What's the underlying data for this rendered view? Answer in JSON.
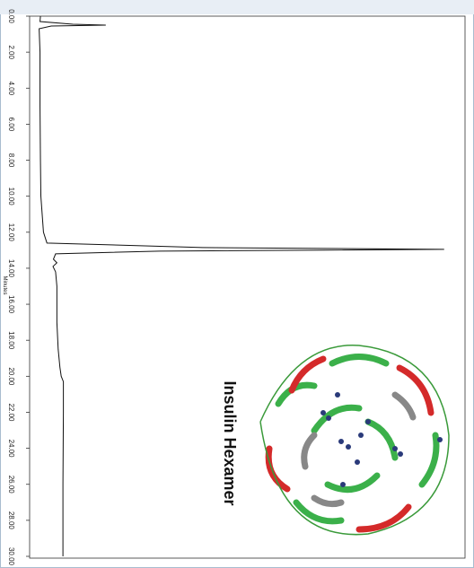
{
  "chart_data": {
    "type": "line",
    "x_label": "Minutes",
    "annotation": "Insulin Hexamer",
    "x": [
      0,
      0.3,
      0.45,
      0.5,
      0.55,
      0.7,
      2,
      5,
      8,
      10,
      12,
      12.6,
      12.85,
      12.95,
      13.05,
      13.2,
      13.5,
      13.7,
      13.9,
      14.2,
      15,
      17,
      18.5,
      19.5,
      20,
      20.3,
      22,
      26,
      30
    ],
    "series": [
      {
        "color": "#111111",
        "values": [
          2.5,
          2.4,
          10,
          17.6,
          5,
          2.2,
          2.4,
          2.4,
          2.5,
          2.6,
          3.2,
          4.0,
          40,
          95.8,
          30,
          6,
          5.5,
          6.3,
          5.4,
          6.0,
          6.3,
          6.3,
          6.6,
          7.0,
          7.3,
          7.8,
          7.8,
          7.7,
          7.7
        ]
      }
    ],
    "xlim": [
      0,
      30
    ],
    "xticks": [
      {
        "value": 0,
        "label": "0.00"
      },
      {
        "value": 2,
        "label": "2.00"
      },
      {
        "value": 4,
        "label": "4.00"
      },
      {
        "value": 6,
        "label": "6.00"
      },
      {
        "value": 8,
        "label": "8.00"
      },
      {
        "value": 10,
        "label": "10.00"
      },
      {
        "value": 12,
        "label": "12.00"
      },
      {
        "value": 14,
        "label": "14.00"
      },
      {
        "value": 16,
        "label": "16.00"
      },
      {
        "value": 18,
        "label": "18.00"
      },
      {
        "value": 20,
        "label": "20.00"
      },
      {
        "value": 22,
        "label": "22.00"
      },
      {
        "value": 24,
        "label": "24.00"
      },
      {
        "value": 26,
        "label": "26.00"
      },
      {
        "value": 28,
        "label": "28.00"
      },
      {
        "value": 30,
        "label": "30.00"
      }
    ],
    "ylim": [
      0,
      100
    ]
  }
}
